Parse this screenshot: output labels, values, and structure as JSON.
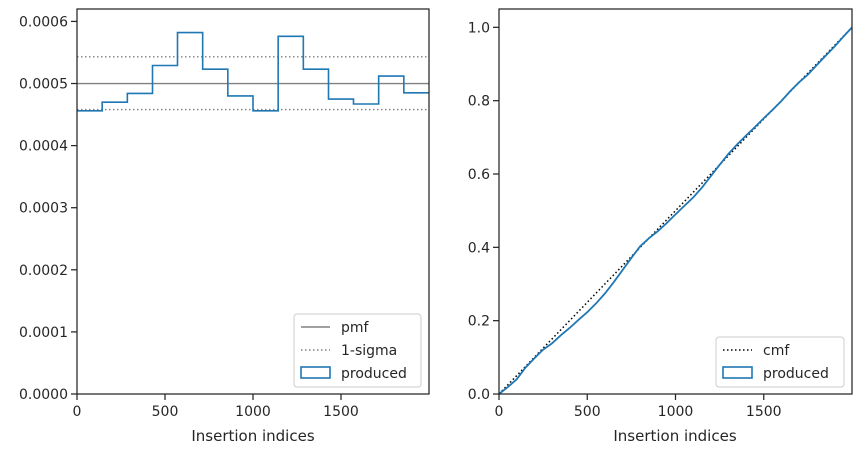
{
  "chart_data": [
    {
      "type": "line",
      "subtype": "step-histogram",
      "xlabel": "Insertion indices",
      "ylabel": "",
      "xlim": [
        0,
        2000
      ],
      "ylim": [
        0,
        0.00062
      ],
      "x_ticks": [
        0,
        500,
        1000,
        1500
      ],
      "x_tick_labels": [
        "0",
        "500",
        "1000",
        "1500"
      ],
      "y_ticks": [
        0,
        0.0001,
        0.0002,
        0.0003,
        0.0004,
        0.0005,
        0.0006
      ],
      "y_tick_labels": [
        "0.0000",
        "0.0001",
        "0.0002",
        "0.0003",
        "0.0004",
        "0.0005",
        "0.0006"
      ],
      "grid": false,
      "legend_position": "lower right",
      "reference_lines": [
        {
          "name": "pmf",
          "y": 0.0005,
          "color": "#808080",
          "style": "solid"
        },
        {
          "name": "1-sigma",
          "y": 0.000543,
          "color": "#808080",
          "style": "dotted"
        },
        {
          "name": "1-sigma",
          "y": 0.000458,
          "color": "#808080",
          "style": "dotted",
          "in_legend": false
        }
      ],
      "series": [
        {
          "name": "produced",
          "color": "#1f77b4",
          "bin_edges": [
            0,
            143,
            286,
            429,
            571,
            714,
            857,
            1000,
            1143,
            1286,
            1429,
            1571,
            1714,
            1857,
            2000
          ],
          "values": [
            0.000456,
            0.00047,
            0.000484,
            0.000529,
            0.000582,
            0.000523,
            0.00048,
            0.000456,
            0.000576,
            0.000523,
            0.000475,
            0.000467,
            0.000512,
            0.000485
          ]
        }
      ],
      "legend": [
        {
          "label": "pmf",
          "kind": "line",
          "style": "solid",
          "color": "#808080"
        },
        {
          "label": "1-sigma",
          "kind": "line",
          "style": "dotted",
          "color": "#808080"
        },
        {
          "label": "produced",
          "kind": "patch",
          "color": "#1f77b4"
        }
      ]
    },
    {
      "type": "line",
      "xlabel": "Insertion indices",
      "ylabel": "",
      "xlim": [
        0,
        2000
      ],
      "ylim": [
        0,
        1.05
      ],
      "x_ticks": [
        0,
        500,
        1000,
        1500
      ],
      "x_tick_labels": [
        "0",
        "500",
        "1000",
        "1500"
      ],
      "y_ticks": [
        0,
        0.2,
        0.4,
        0.6,
        0.8,
        1.0
      ],
      "y_tick_labels": [
        "0.0",
        "0.2",
        "0.4",
        "0.6",
        "0.8",
        "1.0"
      ],
      "grid": false,
      "legend_position": "lower right",
      "series": [
        {
          "name": "cmf",
          "color": "#000000",
          "style": "dotted",
          "x": [
            0,
            2000
          ],
          "y": [
            0,
            1.0
          ]
        },
        {
          "name": "produced",
          "color": "#1f77b4",
          "style": "solid",
          "x": [
            0,
            50,
            100,
            150,
            200,
            250,
            300,
            350,
            400,
            450,
            500,
            550,
            600,
            650,
            700,
            750,
            800,
            850,
            900,
            950,
            1000,
            1050,
            1100,
            1150,
            1200,
            1250,
            1300,
            1350,
            1400,
            1450,
            1500,
            1550,
            1600,
            1650,
            1700,
            1750,
            1800,
            1850,
            1900,
            1950,
            2000
          ],
          "y": [
            0,
            0.019,
            0.04,
            0.072,
            0.097,
            0.121,
            0.138,
            0.16,
            0.18,
            0.202,
            0.223,
            0.247,
            0.274,
            0.305,
            0.338,
            0.371,
            0.403,
            0.425,
            0.444,
            0.466,
            0.49,
            0.513,
            0.536,
            0.563,
            0.594,
            0.625,
            0.655,
            0.681,
            0.705,
            0.728,
            0.752,
            0.775,
            0.799,
            0.826,
            0.85,
            0.871,
            0.897,
            0.922,
            0.947,
            0.974,
            1.0
          ]
        }
      ],
      "legend": [
        {
          "label": "cmf",
          "kind": "line",
          "style": "dotted",
          "color": "#000000"
        },
        {
          "label": "produced",
          "kind": "patch",
          "color": "#1f77b4"
        }
      ]
    }
  ]
}
